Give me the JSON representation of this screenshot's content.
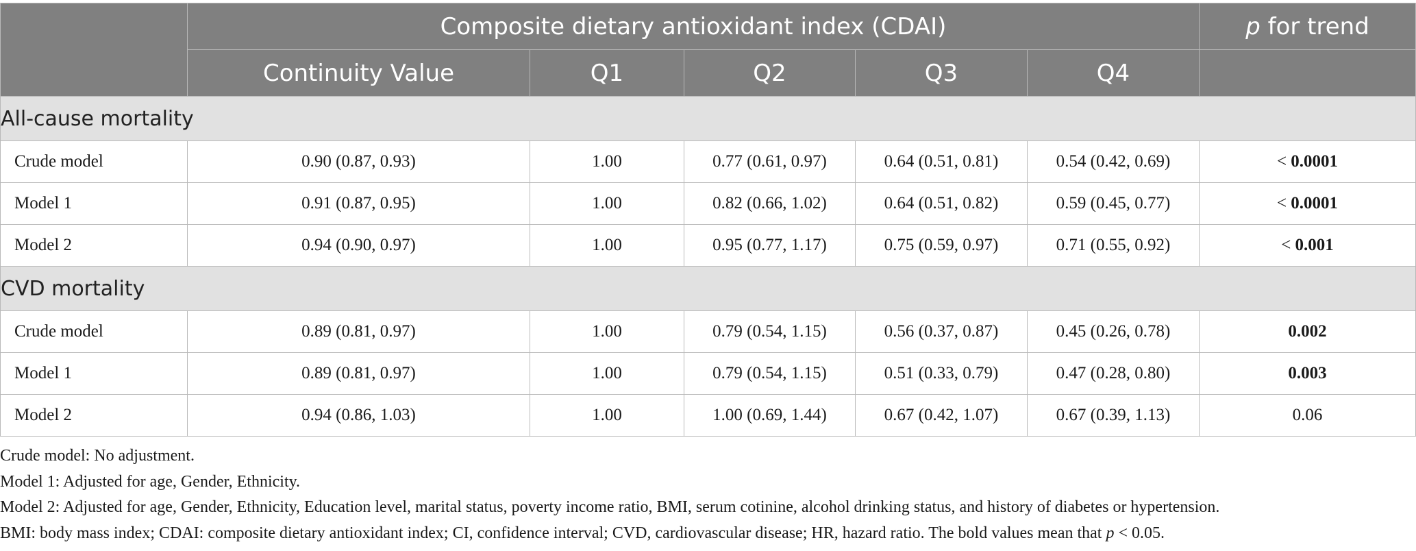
{
  "header": {
    "group_title": "Composite dietary antioxidant index (CDAI)",
    "p_label": "p",
    "p_rest": " for trend",
    "columns": [
      "Continuity Value",
      "Q1",
      "Q2",
      "Q3",
      "Q4"
    ]
  },
  "sections": [
    {
      "title": "All-cause mortality",
      "rows": [
        {
          "label": "Crude model",
          "cont": "0.90 (0.87, 0.93)",
          "q1": "1.00",
          "q2": "0.77 (0.61, 0.97)",
          "q3": "0.64 (0.51, 0.81)",
          "q4": "0.54 (0.42, 0.69)",
          "p_prefix": "< ",
          "p_value": "0.0001"
        },
        {
          "label": "Model 1",
          "cont": "0.91 (0.87, 0.95)",
          "q1": "1.00",
          "q2": "0.82 (0.66, 1.02)",
          "q3": "0.64 (0.51, 0.82)",
          "q4": "0.59 (0.45, 0.77)",
          "p_prefix": "< ",
          "p_value": "0.0001"
        },
        {
          "label": "Model 2",
          "cont": "0.94 (0.90, 0.97)",
          "q1": "1.00",
          "q2": "0.95 (0.77, 1.17)",
          "q3": "0.75 (0.59, 0.97)",
          "q4": "0.71 (0.55, 0.92)",
          "p_prefix": "< ",
          "p_value": "0.001"
        }
      ]
    },
    {
      "title": "CVD mortality",
      "rows": [
        {
          "label": "Crude model",
          "cont": "0.89 (0.81, 0.97)",
          "q1": "1.00",
          "q2": "0.79 (0.54, 1.15)",
          "q3": "0.56 (0.37, 0.87)",
          "q4": "0.45 (0.26, 0.78)",
          "p_prefix": "",
          "p_value": "0.002"
        },
        {
          "label": "Model 1",
          "cont": "0.89 (0.81, 0.97)",
          "q1": "1.00",
          "q2": "0.79 (0.54, 1.15)",
          "q3": "0.51 (0.33, 0.79)",
          "q4": "0.47 (0.28, 0.80)",
          "p_prefix": "",
          "p_value": "0.003"
        },
        {
          "label": "Model 2",
          "cont": "0.94 (0.86, 1.03)",
          "q1": "1.00",
          "q2": "1.00 (0.69, 1.44)",
          "q3": "0.67 (0.42, 1.07)",
          "q4": "0.67 (0.39, 1.13)",
          "p_prefix": "",
          "p_value": "0.06"
        }
      ]
    }
  ],
  "notes": {
    "line1": "Crude model: No adjustment.",
    "line2": "Model 1: Adjusted for age, Gender, Ethnicity.",
    "line3": "Model 2: Adjusted for age, Gender, Ethnicity, Education level, marital status, poverty income ratio, BMI, serum cotinine, alcohol drinking status, and history of diabetes or hypertension.",
    "line4_a": "BMI: body mass index; CDAI: composite dietary antioxidant index; CI, confidence interval; CVD, cardiovascular disease; HR, hazard ratio. The bold values mean that ",
    "line4_p": "p",
    "line4_b": " < 0.05."
  }
}
